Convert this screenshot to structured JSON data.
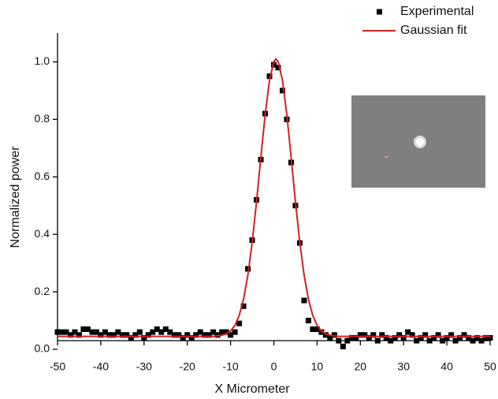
{
  "chart_data": {
    "type": "scatter",
    "x_label": "X Micrometer",
    "y_label": "Normalized power",
    "xlim": [
      -50,
      50
    ],
    "ylim": [
      0,
      1.1
    ],
    "xticks": [
      -50,
      -40,
      -30,
      -20,
      -10,
      0,
      10,
      20,
      30,
      40,
      50
    ],
    "yticks": [
      {
        "value": 0,
        "label": "0.0"
      },
      0.2,
      0.4,
      0.6,
      0.8,
      {
        "value": 1,
        "label": "1.0"
      }
    ],
    "legend": "top-right",
    "series": [
      {
        "name": "Experimental",
        "type": "scatter",
        "color": "#000000",
        "x": [
          -50,
          -49,
          -48,
          -47,
          -46,
          -45,
          -44,
          -43,
          -42,
          -41,
          -40,
          -39,
          -38,
          -37,
          -36,
          -35,
          -34,
          -33,
          -32,
          -31,
          -30,
          -29,
          -28,
          -27,
          -26,
          -25,
          -24,
          -23,
          -22,
          -21,
          -20,
          -19,
          -18,
          -17,
          -16,
          -15,
          -14,
          -13,
          -12,
          -11,
          -10,
          -9,
          -8,
          -7,
          -6,
          -5,
          -4,
          -3,
          -2,
          -1,
          0,
          1,
          2,
          3,
          4,
          5,
          6,
          7,
          8,
          9,
          10,
          11,
          12,
          13,
          14,
          15,
          16,
          17,
          18,
          19,
          20,
          21,
          22,
          23,
          24,
          25,
          26,
          27,
          28,
          29,
          30,
          31,
          32,
          33,
          34,
          35,
          36,
          37,
          38,
          39,
          40,
          41,
          42,
          43,
          44,
          45,
          46,
          47,
          48,
          49,
          50
        ],
        "values": [
          0.06,
          0.06,
          0.06,
          0.05,
          0.06,
          0.05,
          0.07,
          0.07,
          0.06,
          0.06,
          0.05,
          0.06,
          0.05,
          0.05,
          0.06,
          0.05,
          0.05,
          0.04,
          0.05,
          0.06,
          0.04,
          0.05,
          0.06,
          0.07,
          0.06,
          0.07,
          0.06,
          0.05,
          0.05,
          0.04,
          0.05,
          0.04,
          0.05,
          0.06,
          0.05,
          0.05,
          0.06,
          0.05,
          0.06,
          0.06,
          0.05,
          0.06,
          0.09,
          0.15,
          0.28,
          0.38,
          0.52,
          0.66,
          0.82,
          0.95,
          0.99,
          0.98,
          0.9,
          0.8,
          0.65,
          0.5,
          0.37,
          0.17,
          0.1,
          0.07,
          0.07,
          0.06,
          0.05,
          0.04,
          0.05,
          0.03,
          0.01,
          0.03,
          0.04,
          0.04,
          0.05,
          0.05,
          0.04,
          0.05,
          0.03,
          0.05,
          0.04,
          0.03,
          0.04,
          0.05,
          0.04,
          0.06,
          0.05,
          0.03,
          0.04,
          0.05,
          0.03,
          0.04,
          0.05,
          0.03,
          0.04,
          0.05,
          0.03,
          0.04,
          0.05,
          0.04,
          0.03,
          0.04,
          0.03,
          0.04,
          0.04
        ]
      },
      {
        "name": "Gaussian fit",
        "type": "line",
        "color": "#d42020",
        "x": [
          -50,
          -14,
          -12,
          -11,
          -10,
          -9,
          -8,
          -7,
          -6,
          -5,
          -4,
          -3,
          -2,
          -1,
          0,
          0.5,
          1,
          2,
          3,
          4,
          5,
          6,
          7,
          8,
          9,
          10,
          11,
          12,
          13,
          15,
          50
        ],
        "values": [
          0.045,
          0.045,
          0.049,
          0.054,
          0.064,
          0.083,
          0.118,
          0.174,
          0.258,
          0.373,
          0.513,
          0.668,
          0.817,
          0.936,
          1.001,
          1.01,
          1.001,
          0.936,
          0.817,
          0.668,
          0.513,
          0.373,
          0.258,
          0.174,
          0.118,
          0.083,
          0.064,
          0.054,
          0.049,
          0.045,
          0.045
        ]
      }
    ]
  }
}
